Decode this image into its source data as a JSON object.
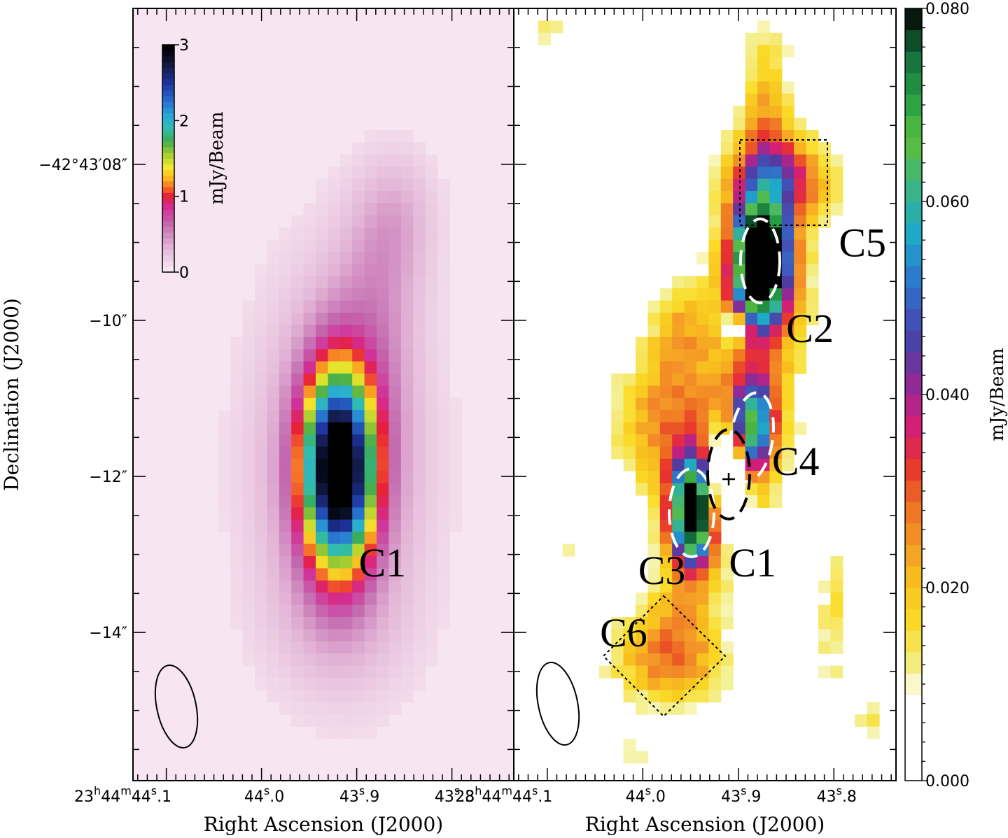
{
  "chart_data": [
    {
      "type": "heatmap",
      "panel": "left",
      "xlabel": "Right Ascension (J2000)",
      "ylabel": "Declination (J2000)",
      "x_ticks": [
        {
          "ra_s": 44.1,
          "label_hm": "23h44m",
          "label_s": "44.1s"
        },
        {
          "ra_s": 44.0,
          "label_s": "44.0s"
        },
        {
          "ra_s": 43.9,
          "label_s": "43.9s"
        },
        {
          "ra_s": 43.8,
          "label_s": "43.8s"
        }
      ],
      "y_ticks": [
        {
          "dec_arcsec": 8,
          "label": "−42°43′08″"
        },
        {
          "dec_arcsec": 10,
          "label": "−10″"
        },
        {
          "dec_arcsec": 12,
          "label": "−12″"
        },
        {
          "dec_arcsec": 14,
          "label": "−14″"
        }
      ],
      "xlim_ra_s": [
        44.135,
        43.735
      ],
      "ylim_dec_arcsec": [
        6.0,
        15.9
      ],
      "colorbar": {
        "label": "mJy/Beam",
        "range": [
          0,
          3
        ],
        "ticks": [
          "0",
          "1",
          "2",
          "3"
        ],
        "placement": "inset top-left"
      },
      "annotations": [
        {
          "label": "C1",
          "ra_s": 43.873,
          "dec_arcsec": 13.1
        }
      ],
      "beam": {
        "ra_s": 44.085,
        "dec_arcsec": 15.0,
        "shape": "ellipse"
      },
      "background_color": "#f7e6f1"
    },
    {
      "type": "heatmap",
      "panel": "right",
      "xlabel": "Right Ascension (J2000)",
      "x_ticks": [
        {
          "ra_s": 44.1,
          "label_hm": "23h44m",
          "label_s": "44.1s"
        },
        {
          "ra_s": 44.0,
          "label_s": "44.0s"
        },
        {
          "ra_s": 43.9,
          "label_s": "43.9s"
        },
        {
          "ra_s": 43.8,
          "label_s": "43.8s"
        }
      ],
      "xlim_ra_s": [
        44.135,
        43.735
      ],
      "ylim_dec_arcsec": [
        6.0,
        15.9
      ],
      "colorbar": {
        "label": "mJy/Beam",
        "range": [
          0.0,
          0.08
        ],
        "ticks": [
          "0.000",
          "0.020",
          "0.040",
          "0.060",
          "0.080"
        ],
        "placement": "right"
      },
      "annotations": [
        {
          "label": "C1",
          "ra_s": 43.885,
          "dec_arcsec": 13.1
        },
        {
          "label": "C2",
          "ra_s": 43.825,
          "dec_arcsec": 10.1
        },
        {
          "label": "C3",
          "ra_s": 43.98,
          "dec_arcsec": 13.2
        },
        {
          "label": "C4",
          "ra_s": 43.84,
          "dec_arcsec": 11.8
        },
        {
          "label": "C5",
          "ra_s": 43.77,
          "dec_arcsec": 9.0
        },
        {
          "label": "C6",
          "ra_s": 44.02,
          "dec_arcsec": 14.0
        }
      ],
      "cross_marker": {
        "ra_s": 43.911,
        "dec_arcsec": 12.45
      },
      "beam": {
        "ra_s": 44.087,
        "dec_arcsec": 15.0,
        "shape": "ellipse"
      }
    }
  ],
  "colors": {
    "left_background": "#f7e6f1",
    "dashed_ellipse_white": "#ffffff",
    "dashed_ellipse_black": "#000000"
  }
}
